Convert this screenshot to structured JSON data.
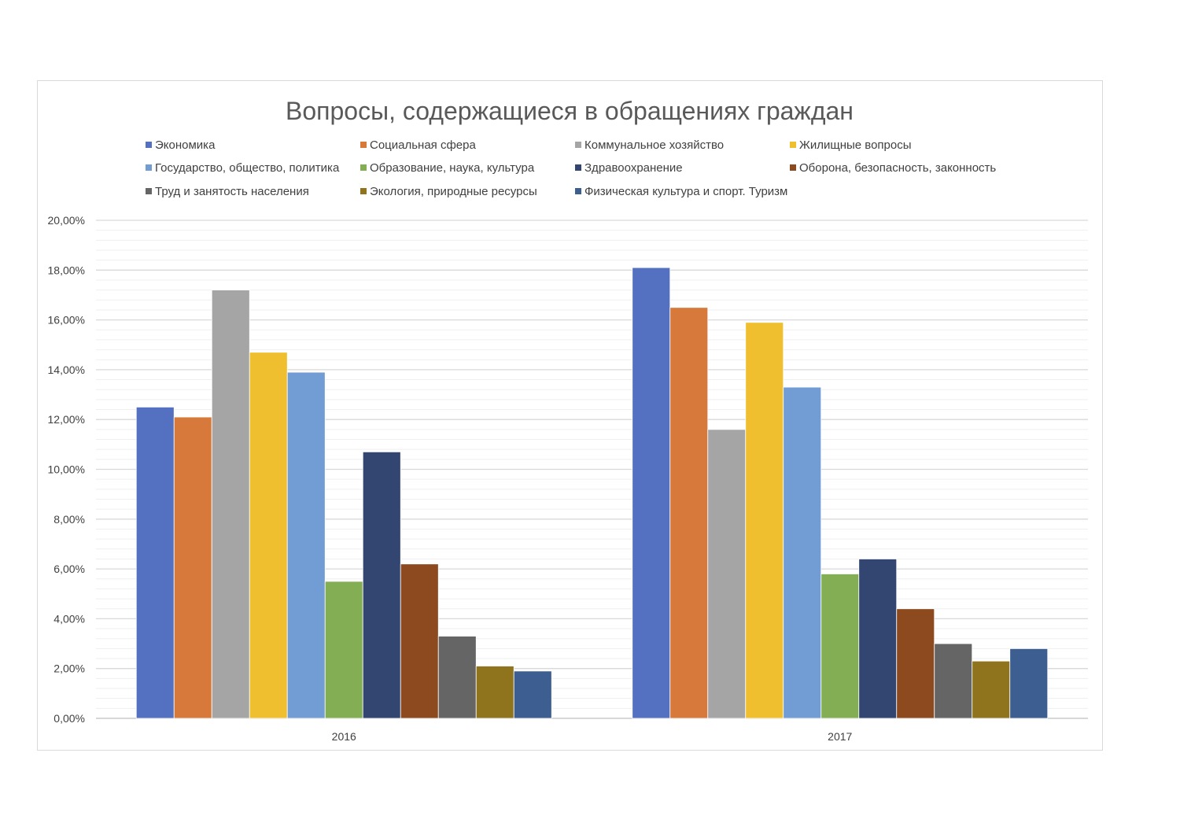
{
  "chart_data": {
    "type": "bar",
    "title": "Вопросы, содержащиеся в обращениях граждан",
    "categories": [
      "2016",
      "2017"
    ],
    "ylim": [
      0,
      20
    ],
    "ytick_step": 2,
    "ytick_labels": [
      "0,00%",
      "2,00%",
      "4,00%",
      "6,00%",
      "8,00%",
      "10,00%",
      "12,00%",
      "14,00%",
      "16,00%",
      "18,00%",
      "20,00%"
    ],
    "grid": true,
    "legend_position": "top",
    "xlabel": "",
    "ylabel": "",
    "series": [
      {
        "name": "Экономика",
        "color": "#5470c1",
        "values": [
          12.5,
          18.1
        ]
      },
      {
        "name": "Социальная сфера",
        "color": "#d6793a",
        "values": [
          12.1,
          16.5
        ]
      },
      {
        "name": "Коммунальное хозяйство",
        "color": "#a5a5a5",
        "values": [
          17.2,
          11.6
        ]
      },
      {
        "name": "Жилищные вопросы",
        "color": "#f0bf2f",
        "values": [
          14.7,
          15.9
        ]
      },
      {
        "name": "Государство, общество, политика",
        "color": "#729cd4",
        "values": [
          13.9,
          13.3
        ]
      },
      {
        "name": "Образование, наука, культура",
        "color": "#84ae54",
        "values": [
          5.5,
          5.8
        ]
      },
      {
        "name": "Здравоохранение",
        "color": "#334571",
        "values": [
          10.7,
          6.4
        ]
      },
      {
        "name": "Оборона, безопасность, законность",
        "color": "#8d4a1e",
        "values": [
          6.2,
          4.4
        ]
      },
      {
        "name": "Труд и занятость населения",
        "color": "#656565",
        "values": [
          3.3,
          3.0
        ]
      },
      {
        "name": "Экология, природные ресурсы",
        "color": "#8f731d",
        "values": [
          2.1,
          2.3
        ]
      },
      {
        "name": "Физическая культура и спорт. Туризм",
        "color": "#3c5e90",
        "values": [
          1.9,
          2.8
        ]
      }
    ]
  }
}
